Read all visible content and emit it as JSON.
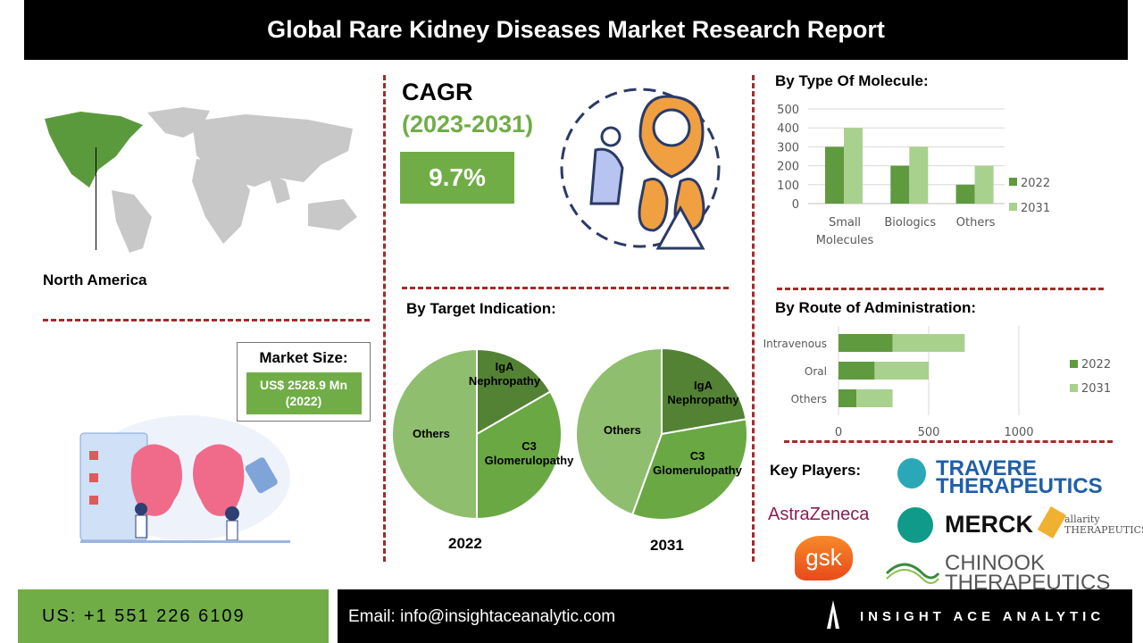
{
  "header": {
    "title": "Global Rare Kidney Diseases Market Research Report"
  },
  "region": {
    "label": "North America",
    "highlight_color": "#5b9a3c"
  },
  "market_size": {
    "label": "Market Size:",
    "value": "US$ 2528.9 Mn (2022)"
  },
  "cagr": {
    "label": "CAGR",
    "period": "(2023-2031)",
    "value": "9.7%"
  },
  "colors": {
    "accent": "#70ad47",
    "divider": "#a52a2a",
    "series_2022": "#5f9a3e",
    "series_2031": "#a9d18e"
  },
  "chart_data": [
    {
      "type": "bar",
      "title": "By Type Of Molecule:",
      "categories": [
        "Small Molecules",
        "Biologics",
        "Others"
      ],
      "series": [
        {
          "name": "2022",
          "values": [
            300,
            200,
            100
          ]
        },
        {
          "name": "2031",
          "values": [
            400,
            300,
            200
          ]
        }
      ],
      "ylim": [
        0,
        500
      ],
      "yticks": [
        "0",
        "100",
        "200",
        "300",
        "400",
        "500"
      ],
      "grid": true,
      "legend": "right"
    },
    {
      "type": "bar",
      "orientation": "horizontal",
      "stacked": true,
      "title": "By  Route of Administration:",
      "categories": [
        "Intravenous",
        "Oral",
        "Others"
      ],
      "series": [
        {
          "name": "2022",
          "values": [
            300,
            200,
            100
          ]
        },
        {
          "name": "2031",
          "values": [
            400,
            300,
            200
          ]
        }
      ],
      "xlim": [
        0,
        1000
      ],
      "xticks": [
        "0",
        "500",
        "1000"
      ],
      "grid": true,
      "legend": "right"
    },
    {
      "type": "pie",
      "title": "By Target Indication:",
      "subtitle": "2022",
      "labels": [
        "IgA Nephropathy",
        "C3 Glomerulopathy",
        "Others"
      ],
      "values": [
        100,
        200,
        300
      ],
      "colors": [
        "#548235",
        "#6aa843",
        "#8fbe6e"
      ]
    },
    {
      "type": "pie",
      "subtitle": "2031",
      "labels": [
        "IgA Nephropathy",
        "C3 Glomerulopathy",
        "Others"
      ],
      "values": [
        200,
        300,
        400
      ],
      "colors": [
        "#548235",
        "#6aa843",
        "#8fbe6e"
      ]
    }
  ],
  "key_players": {
    "label": "Key Players:",
    "logos": [
      "TRAVERE THERAPEUTICS",
      "AstraZeneca",
      "MERCK",
      "allarity THERAPEUTICS",
      "gsk",
      "CHINOOK THERAPEUTICS"
    ]
  },
  "footer": {
    "phone": "US: +1 551 226 6109",
    "email": "Email: info@insightaceanalytic.com",
    "brand": "INSIGHT ACE ANALYTIC"
  }
}
